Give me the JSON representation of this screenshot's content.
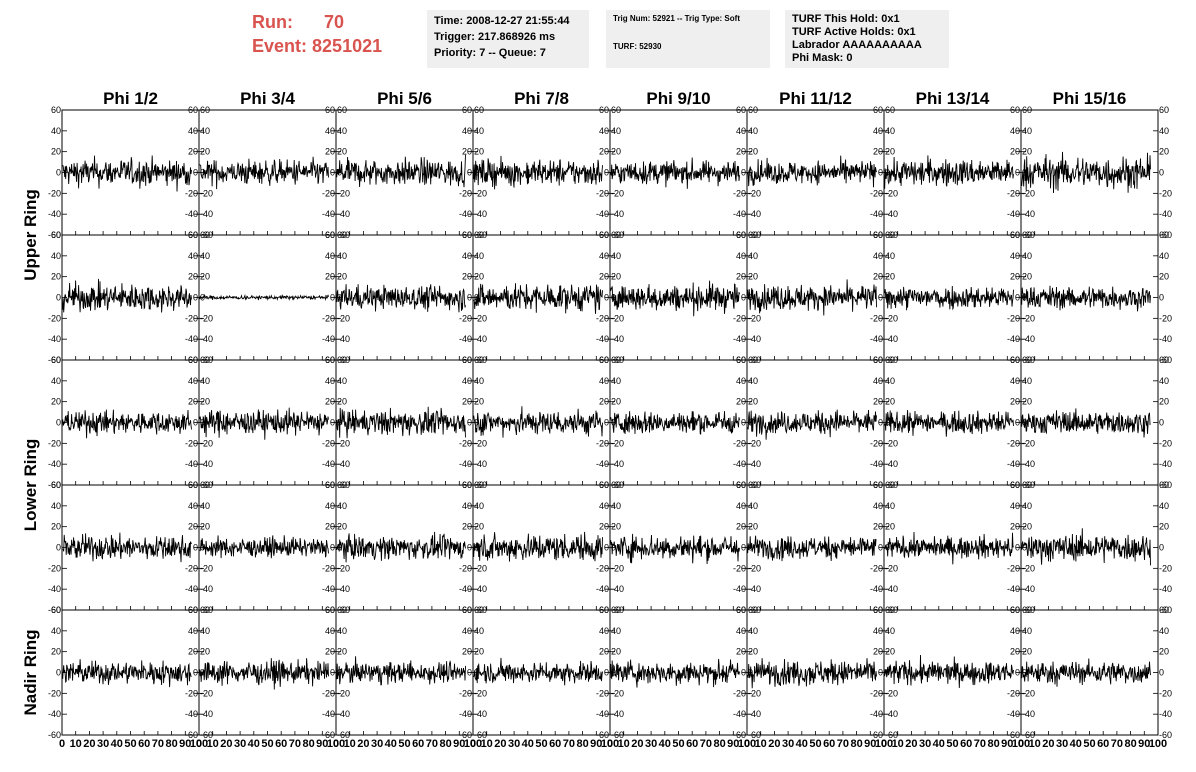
{
  "header": {
    "run_label": "Run:",
    "run_value": "70",
    "event_label": "Event:",
    "event_value": "8251021"
  },
  "info_panel_1": {
    "time": "Time: 2008-12-27 21:55:44",
    "trigger": "Trigger: 217.868926 ms",
    "priority": "Priority: 7 -- Queue: 7"
  },
  "info_panel_2": {
    "trig": "Trig Num: 52921 -- Trig Type: Soft",
    "turf": "TURF: 52930"
  },
  "info_panel_3": {
    "hold": "TURF This Hold: 0x1",
    "active": "TURF Active Holds: 0x1",
    "labrador": "Labrador AAAAAAAAAA",
    "phimask": "Phi Mask: 0"
  },
  "colors": {
    "accent": "#d9534f",
    "panel_bg": "#efefef",
    "trace": "#000000"
  },
  "chart_data": {
    "type": "line",
    "columns": [
      "Phi 1/2",
      "Phi 3/4",
      "Phi 5/6",
      "Phi 7/8",
      "Phi 9/10",
      "Phi 11/12",
      "Phi 13/14",
      "Phi 15/16"
    ],
    "ring_labels": [
      "Upper Ring",
      "Lower Ring",
      "Nadir Ring"
    ],
    "rows_per_ring": [
      2,
      2,
      1
    ],
    "xlim": [
      0,
      100
    ],
    "ylim": [
      -60,
      60
    ],
    "xticks": [
      0,
      10,
      20,
      30,
      40,
      50,
      60,
      70,
      80,
      90,
      100
    ],
    "yticks": [
      -60,
      -40,
      -20,
      0,
      20,
      40,
      60
    ],
    "samples": 260,
    "amplitude": [
      [
        14,
        13,
        14,
        14,
        12,
        12,
        14,
        17
      ],
      [
        14,
        2,
        13,
        14,
        14,
        13,
        12,
        12
      ],
      [
        12,
        13,
        13,
        13,
        12,
        12,
        12,
        12
      ],
      [
        13,
        10,
        12,
        14,
        13,
        12,
        11,
        14
      ],
      [
        12,
        12,
        11,
        11,
        12,
        13,
        12,
        12
      ]
    ]
  }
}
